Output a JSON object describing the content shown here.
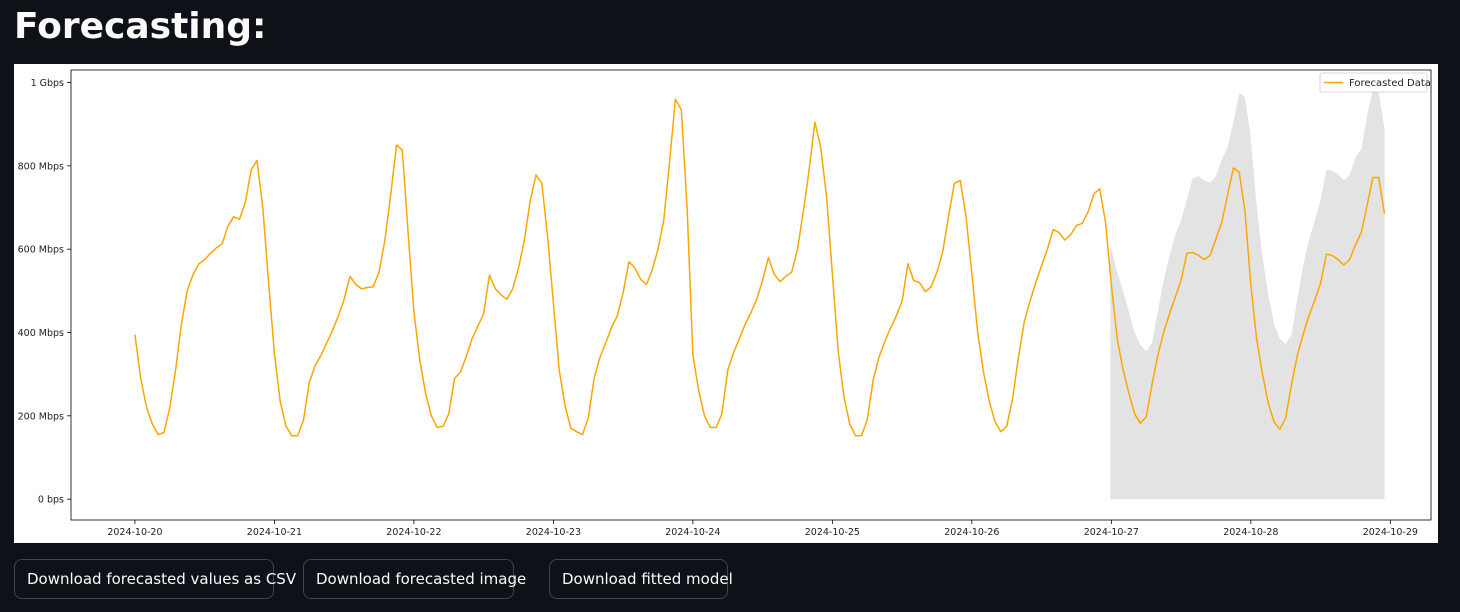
{
  "page": {
    "title": "Forecasting:"
  },
  "buttons": {
    "download_csv": "Download forecasted values as CSV",
    "download_image": "Download forecasted image",
    "download_model": "Download fitted model"
  },
  "chart_data": {
    "type": "line",
    "title": "",
    "xlabel": "",
    "ylabel": "",
    "x_unit": "hours since 2024-10-20 00:00",
    "xlim_hours": [
      -11,
      223
    ],
    "ylim": [
      -50,
      1030
    ],
    "x_ticks": [
      {
        "label": "2024-10-20",
        "hour": 0
      },
      {
        "label": "2024-10-21",
        "hour": 24
      },
      {
        "label": "2024-10-22",
        "hour": 48
      },
      {
        "label": "2024-10-23",
        "hour": 72
      },
      {
        "label": "2024-10-24",
        "hour": 96
      },
      {
        "label": "2024-10-25",
        "hour": 120
      },
      {
        "label": "2024-10-26",
        "hour": 144
      },
      {
        "label": "2024-10-27",
        "hour": 168
      },
      {
        "label": "2024-10-28",
        "hour": 192
      },
      {
        "label": "2024-10-29",
        "hour": 216
      }
    ],
    "y_ticks": [
      {
        "label": "0 bps",
        "value": 0
      },
      {
        "label": "200 Mbps",
        "value": 200
      },
      {
        "label": "400 Mbps",
        "value": 400
      },
      {
        "label": "600 Mbps",
        "value": 600
      },
      {
        "label": "800 Mbps",
        "value": 800
      },
      {
        "label": "1 Gbps",
        "value": 1000
      }
    ],
    "legend": {
      "position": "top-right",
      "entries": [
        "Forecasted Data"
      ]
    },
    "colors": {
      "line": "#ffa500",
      "band": "#d9d9d9"
    },
    "grid": false,
    "series": [
      {
        "name": "Forecasted Data",
        "unit": "Mbps",
        "points": [
          [
            0,
            395
          ],
          [
            1,
            290
          ],
          [
            2,
            220
          ],
          [
            3,
            180
          ],
          [
            4,
            155
          ],
          [
            5,
            160
          ],
          [
            6,
            220
          ],
          [
            7,
            310
          ],
          [
            8,
            420
          ],
          [
            9,
            500
          ],
          [
            10,
            540
          ],
          [
            11,
            565
          ],
          [
            12,
            575
          ],
          [
            13,
            590
          ],
          [
            14,
            603
          ],
          [
            15,
            613
          ],
          [
            16,
            655
          ],
          [
            17,
            678
          ],
          [
            18,
            672
          ],
          [
            19,
            713
          ],
          [
            20,
            790
          ],
          [
            21,
            813
          ],
          [
            22,
            700
          ],
          [
            23,
            520
          ],
          [
            24,
            350
          ],
          [
            25,
            235
          ],
          [
            26,
            175
          ],
          [
            27,
            152
          ],
          [
            28,
            152
          ],
          [
            29,
            190
          ],
          [
            30,
            280
          ],
          [
            31,
            320
          ],
          [
            32,
            345
          ],
          [
            33,
            375
          ],
          [
            34,
            405
          ],
          [
            35,
            440
          ],
          [
            36,
            480
          ],
          [
            37,
            535
          ],
          [
            38,
            515
          ],
          [
            39,
            505
          ],
          [
            40,
            508
          ],
          [
            41,
            510
          ],
          [
            42,
            545
          ],
          [
            43,
            620
          ],
          [
            44,
            730
          ],
          [
            45,
            850
          ],
          [
            46,
            838
          ],
          [
            47,
            640
          ],
          [
            48,
            450
          ],
          [
            49,
            335
          ],
          [
            50,
            255
          ],
          [
            51,
            200
          ],
          [
            52,
            172
          ],
          [
            53,
            175
          ],
          [
            54,
            205
          ],
          [
            55,
            290
          ],
          [
            56,
            305
          ],
          [
            57,
            342
          ],
          [
            58,
            385
          ],
          [
            59,
            415
          ],
          [
            60,
            445
          ],
          [
            61,
            538
          ],
          [
            62,
            505
          ],
          [
            63,
            490
          ],
          [
            64,
            480
          ],
          [
            65,
            505
          ],
          [
            66,
            555
          ],
          [
            67,
            620
          ],
          [
            68,
            715
          ],
          [
            69,
            778
          ],
          [
            70,
            758
          ],
          [
            71,
            630
          ],
          [
            72,
            470
          ],
          [
            73,
            310
          ],
          [
            74,
            225
          ],
          [
            75,
            170
          ],
          [
            76,
            162
          ],
          [
            77,
            155
          ],
          [
            78,
            195
          ],
          [
            79,
            290
          ],
          [
            80,
            340
          ],
          [
            81,
            375
          ],
          [
            82,
            412
          ],
          [
            83,
            440
          ],
          [
            84,
            495
          ],
          [
            85,
            570
          ],
          [
            86,
            555
          ],
          [
            87,
            528
          ],
          [
            88,
            515
          ],
          [
            89,
            550
          ],
          [
            90,
            600
          ],
          [
            91,
            670
          ],
          [
            92,
            810
          ],
          [
            93,
            960
          ],
          [
            94,
            935
          ],
          [
            95,
            700
          ],
          [
            96,
            345
          ],
          [
            97,
            260
          ],
          [
            98,
            200
          ],
          [
            99,
            172
          ],
          [
            100,
            172
          ],
          [
            101,
            205
          ],
          [
            102,
            310
          ],
          [
            103,
            352
          ],
          [
            104,
            385
          ],
          [
            105,
            420
          ],
          [
            106,
            448
          ],
          [
            107,
            480
          ],
          [
            108,
            525
          ],
          [
            109,
            580
          ],
          [
            110,
            540
          ],
          [
            111,
            522
          ],
          [
            112,
            535
          ],
          [
            113,
            545
          ],
          [
            114,
            600
          ],
          [
            115,
            690
          ],
          [
            116,
            790
          ],
          [
            117,
            905
          ],
          [
            118,
            845
          ],
          [
            119,
            725
          ],
          [
            120,
            540
          ],
          [
            121,
            355
          ],
          [
            122,
            245
          ],
          [
            123,
            180
          ],
          [
            124,
            152
          ],
          [
            125,
            152
          ],
          [
            126,
            190
          ],
          [
            127,
            285
          ],
          [
            128,
            340
          ],
          [
            129,
            378
          ],
          [
            130,
            410
          ],
          [
            131,
            440
          ],
          [
            132,
            475
          ],
          [
            133,
            565
          ],
          [
            134,
            525
          ],
          [
            135,
            520
          ],
          [
            136,
            498
          ],
          [
            137,
            510
          ],
          [
            138,
            545
          ],
          [
            139,
            595
          ],
          [
            140,
            680
          ],
          [
            141,
            758
          ],
          [
            142,
            765
          ],
          [
            143,
            680
          ],
          [
            144,
            540
          ],
          [
            145,
            400
          ],
          [
            146,
            305
          ],
          [
            147,
            235
          ],
          [
            148,
            185
          ],
          [
            149,
            162
          ],
          [
            150,
            175
          ],
          [
            151,
            240
          ],
          [
            152,
            340
          ],
          [
            153,
            425
          ],
          [
            154,
            475
          ],
          [
            155,
            520
          ],
          [
            156,
            560
          ],
          [
            157,
            600
          ],
          [
            158,
            647
          ],
          [
            159,
            640
          ],
          [
            160,
            622
          ],
          [
            161,
            635
          ],
          [
            162,
            657
          ],
          [
            163,
            662
          ],
          [
            164,
            690
          ],
          [
            165,
            733
          ],
          [
            166,
            745
          ],
          [
            167,
            665
          ],
          [
            168,
            515
          ],
          [
            169,
            385
          ],
          [
            170,
            312
          ],
          [
            171,
            255
          ],
          [
            172,
            205
          ],
          [
            173,
            182
          ],
          [
            174,
            198
          ],
          [
            175,
            275
          ],
          [
            176,
            345
          ],
          [
            177,
            400
          ],
          [
            178,
            445
          ],
          [
            179,
            485
          ],
          [
            180,
            525
          ],
          [
            181,
            590
          ],
          [
            182,
            592
          ],
          [
            183,
            585
          ],
          [
            184,
            575
          ],
          [
            185,
            585
          ],
          [
            186,
            625
          ],
          [
            187,
            665
          ],
          [
            188,
            730
          ],
          [
            189,
            795
          ],
          [
            190,
            785
          ],
          [
            191,
            690
          ],
          [
            192,
            515
          ],
          [
            193,
            385
          ],
          [
            194,
            300
          ],
          [
            195,
            230
          ],
          [
            196,
            185
          ],
          [
            197,
            168
          ],
          [
            198,
            195
          ],
          [
            199,
            275
          ],
          [
            200,
            345
          ],
          [
            201,
            395
          ],
          [
            202,
            440
          ],
          [
            203,
            478
          ],
          [
            204,
            518
          ],
          [
            205,
            588
          ],
          [
            206,
            585
          ],
          [
            207,
            575
          ],
          [
            208,
            562
          ],
          [
            209,
            575
          ],
          [
            210,
            610
          ],
          [
            211,
            640
          ],
          [
            212,
            705
          ],
          [
            213,
            772
          ],
          [
            214,
            772
          ],
          [
            215,
            685
          ]
        ]
      }
    ],
    "confidence_band": {
      "x_range_hours": [
        167.8,
        215
      ],
      "upper": [
        [
          167.8,
          605
        ],
        [
          168,
          600
        ],
        [
          169,
          545
        ],
        [
          170,
          500
        ],
        [
          171,
          450
        ],
        [
          172,
          400
        ],
        [
          173,
          370
        ],
        [
          174,
          355
        ],
        [
          175,
          375
        ],
        [
          176,
          450
        ],
        [
          177,
          525
        ],
        [
          178,
          585
        ],
        [
          179,
          635
        ],
        [
          180,
          670
        ],
        [
          181,
          720
        ],
        [
          182,
          770
        ],
        [
          183,
          775
        ],
        [
          184,
          765
        ],
        [
          185,
          760
        ],
        [
          186,
          775
        ],
        [
          187,
          815
        ],
        [
          188,
          845
        ],
        [
          189,
          905
        ],
        [
          190,
          975
        ],
        [
          191,
          965
        ],
        [
          192,
          865
        ],
        [
          193,
          705
        ],
        [
          194,
          580
        ],
        [
          195,
          490
        ],
        [
          196,
          420
        ],
        [
          197,
          385
        ],
        [
          198,
          372
        ],
        [
          199,
          395
        ],
        [
          200,
          480
        ],
        [
          201,
          560
        ],
        [
          202,
          620
        ],
        [
          203,
          668
        ],
        [
          204,
          718
        ],
        [
          205,
          790
        ],
        [
          206,
          788
        ],
        [
          207,
          780
        ],
        [
          208,
          765
        ],
        [
          209,
          778
        ],
        [
          210,
          820
        ],
        [
          211,
          840
        ],
        [
          212,
          920
        ],
        [
          213,
          985
        ],
        [
          214,
          975
        ],
        [
          215,
          890
        ]
      ],
      "lower": 0
    }
  }
}
